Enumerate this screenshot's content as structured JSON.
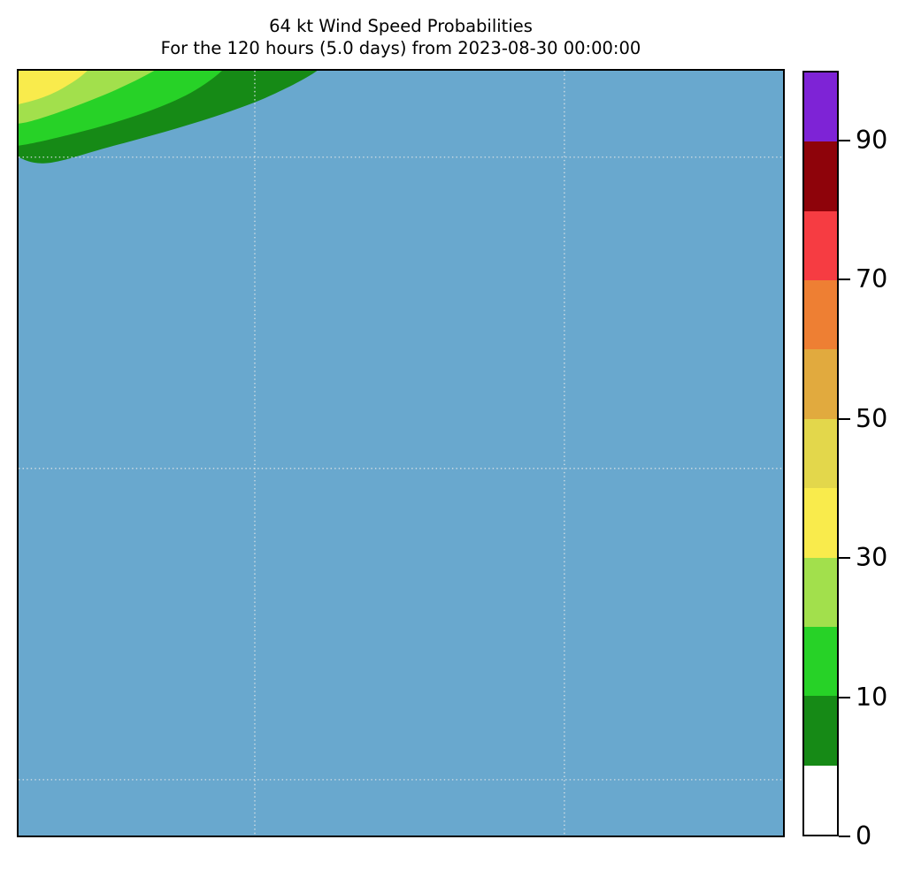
{
  "title": {
    "line1": "64 kt Wind Speed Probabilities",
    "line2": "For the 120 hours (5.0 days) from 2023-08-30 00:00:00"
  },
  "chart_data": {
    "type": "heatmap",
    "subtype": "filled_contour_probability_map",
    "title": "64 kt Wind Speed Probabilities",
    "subtitle": "For the 120 hours (5.0 days) from 2023-08-30 00:00:00",
    "units": "percent probability",
    "background_color": "#69a8ce",
    "field_description": "Probabilities above 5% are confined to the upper-left corner of the map; concentric bands decrease outward from a 30-40% maximum at the corner. Rest of domain is below 5% (shown as plain blue background).",
    "bands": [
      {
        "range_pct": "5-10",
        "color": "#168a16"
      },
      {
        "range_pct": "10-20",
        "color": "#27d227"
      },
      {
        "range_pct": "20-30",
        "color": "#a2e04c"
      },
      {
        "range_pct": "30-40",
        "color": "#f9eb4c"
      }
    ],
    "colorbar": {
      "boundaries": [
        0,
        5,
        10,
        20,
        30,
        40,
        50,
        60,
        70,
        80,
        90,
        100
      ],
      "colors_top_to_bottom": [
        "#7e23d6",
        "#8e030a",
        "#f63c42",
        "#ee7f33",
        "#e1aa3e",
        "#e3d74b",
        "#f9eb4c",
        "#a2e04c",
        "#27d227",
        "#168a16",
        "#ffffff"
      ],
      "ticks": [
        {
          "label": "90",
          "frac_from_bottom": 0.90909
        },
        {
          "label": "70",
          "frac_from_bottom": 0.72727
        },
        {
          "label": "50",
          "frac_from_bottom": 0.54545
        },
        {
          "label": "30",
          "frac_from_bottom": 0.36364
        },
        {
          "label": "10",
          "frac_from_bottom": 0.18182
        },
        {
          "label": "0",
          "frac_from_bottom": 0.0
        }
      ]
    },
    "grid": {
      "style": "dotted",
      "color": "#d9e1e6",
      "vertical_fracs": [
        0.309,
        0.714
      ],
      "horizontal_fracs": [
        0.113,
        0.52,
        0.927
      ]
    }
  }
}
